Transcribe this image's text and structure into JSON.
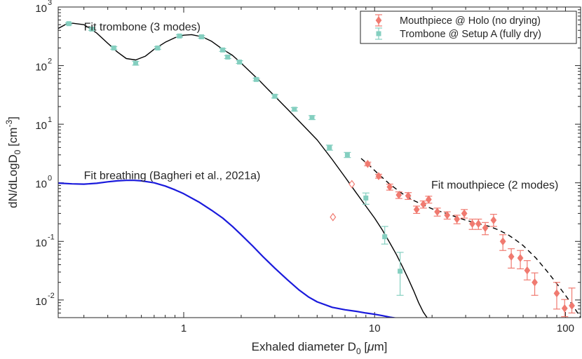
{
  "chart_data": {
    "type": "scatter",
    "xscale": "log",
    "yscale": "log",
    "xlim": [
      0.22,
      120
    ],
    "ylim": [
      0.005,
      1000
    ],
    "xlabel": {
      "main": "Exhaled diameter D",
      "sub": "0",
      "rest": " [",
      "mu": "μ",
      "unit": "m]"
    },
    "ylabel": {
      "main": "dN/dLogD",
      "sub": "0",
      "rest": " [cm",
      "sup": "-3",
      "end": "]"
    },
    "xticks": [
      {
        "value": 1,
        "label": "1"
      },
      {
        "value": 10,
        "label": "10"
      },
      {
        "value": 100,
        "label": "100"
      }
    ],
    "yticks": [
      {
        "value": 0.01,
        "base": "10",
        "exp": "-2"
      },
      {
        "value": 0.1,
        "base": "10",
        "exp": "-1"
      },
      {
        "value": 1,
        "base": "10",
        "exp": "0"
      },
      {
        "value": 10,
        "base": "10",
        "exp": "1"
      },
      {
        "value": 100,
        "base": "10",
        "exp": "2"
      },
      {
        "value": 1000,
        "base": "10",
        "exp": "3"
      }
    ],
    "legend": {
      "placement": "top-right",
      "entries": [
        {
          "label": "Mouthpiece @ Holo (no drying)",
          "color": "#f07a70",
          "marker": "diamond"
        },
        {
          "label": "Trombone @ Setup A (fully dry)",
          "color": "#84cfc0",
          "marker": "square"
        }
      ]
    },
    "annotations": [
      {
        "text": "Fit trombone (3 modes)",
        "x": 0.3,
        "y": 400
      },
      {
        "text": "Fit breathing (Bagheri et al., 2021a)",
        "x": 0.3,
        "y": 1.15
      },
      {
        "text": "Fit mouthpiece (2 modes)",
        "x": 19.8,
        "y": 0.8
      }
    ],
    "series": [
      {
        "name": "Trombone @ Setup A (fully dry)",
        "color": "#84cfc0",
        "marker": "square",
        "points": [
          {
            "x": 0.25,
            "y": 520,
            "err": [
              20,
              20
            ]
          },
          {
            "x": 0.33,
            "y": 420,
            "err": [
              20,
              20
            ]
          },
          {
            "x": 0.43,
            "y": 200,
            "err": [
              10,
              10
            ]
          },
          {
            "x": 0.56,
            "y": 110,
            "err": [
              8,
              8
            ]
          },
          {
            "x": 0.73,
            "y": 200,
            "err": [
              10,
              10
            ]
          },
          {
            "x": 0.95,
            "y": 320,
            "err": [
              15,
              15
            ]
          },
          {
            "x": 1.24,
            "y": 310,
            "err": [
              15,
              15
            ]
          },
          {
            "x": 1.6,
            "y": 185,
            "err": [
              10,
              10
            ]
          },
          {
            "x": 1.7,
            "y": 140,
            "err": [
              8,
              8
            ]
          },
          {
            "x": 1.96,
            "y": 115,
            "err": [
              6,
              6
            ]
          },
          {
            "x": 2.4,
            "y": 58,
            "err": [
              3,
              3
            ]
          },
          {
            "x": 3.0,
            "y": 30,
            "err": [
              2,
              2
            ]
          },
          {
            "x": 3.8,
            "y": 18,
            "err": [
              1.2,
              1.2
            ]
          },
          {
            "x": 4.7,
            "y": 13,
            "err": [
              1,
              1
            ]
          },
          {
            "x": 5.8,
            "y": 4,
            "err": [
              0.4,
              0.4
            ]
          },
          {
            "x": 7.2,
            "y": 3,
            "err": [
              0.3,
              0.3
            ]
          },
          {
            "x": 9.0,
            "y": 0.55,
            "err": [
              0.12,
              0.12
            ]
          },
          {
            "x": 11.3,
            "y": 0.12,
            "err": [
              0.03,
              0.06
            ]
          },
          {
            "x": 13.6,
            "y": 0.031,
            "err": [
              0.019,
              0.034
            ]
          }
        ]
      },
      {
        "name": "Mouthpiece @ Holo (no drying)",
        "color": "#f07a70",
        "marker": "diamond",
        "points": [
          {
            "x": 9.2,
            "y": 2.1,
            "err": [
              0.15,
              0.15
            ]
          },
          {
            "x": 10.5,
            "y": 1.3,
            "err": [
              0.1,
              0.1
            ]
          },
          {
            "x": 12.0,
            "y": 0.85,
            "err": [
              0.1,
              0.1
            ]
          },
          {
            "x": 13.4,
            "y": 0.62,
            "err": [
              0.08,
              0.08
            ]
          },
          {
            "x": 15.0,
            "y": 0.6,
            "err": [
              0.08,
              0.08
            ]
          },
          {
            "x": 16.6,
            "y": 0.35,
            "err": [
              0.05,
              0.05
            ]
          },
          {
            "x": 18.0,
            "y": 0.43,
            "err": [
              0.06,
              0.06
            ]
          },
          {
            "x": 19.2,
            "y": 0.52,
            "err": [
              0.07,
              0.07
            ]
          },
          {
            "x": 21.3,
            "y": 0.32,
            "err": [
              0.05,
              0.05
            ]
          },
          {
            "x": 24.0,
            "y": 0.28,
            "err": [
              0.04,
              0.04
            ]
          },
          {
            "x": 27.0,
            "y": 0.24,
            "err": [
              0.04,
              0.04
            ]
          },
          {
            "x": 29.5,
            "y": 0.3,
            "err": [
              0.05,
              0.05
            ]
          },
          {
            "x": 32.5,
            "y": 0.2,
            "err": [
              0.04,
              0.04
            ]
          },
          {
            "x": 35.0,
            "y": 0.2,
            "err": [
              0.04,
              0.04
            ]
          },
          {
            "x": 38.0,
            "y": 0.17,
            "err": [
              0.04,
              0.04
            ]
          },
          {
            "x": 42.0,
            "y": 0.23,
            "err": [
              0.05,
              0.06
            ]
          },
          {
            "x": 47.0,
            "y": 0.1,
            "err": [
              0.03,
              0.03
            ]
          },
          {
            "x": 52.0,
            "y": 0.055,
            "err": [
              0.02,
              0.02
            ]
          },
          {
            "x": 58.0,
            "y": 0.052,
            "err": [
              0.018,
              0.018
            ]
          },
          {
            "x": 63.0,
            "y": 0.032,
            "err": [
              0.01,
              0.015
            ]
          },
          {
            "x": 69.0,
            "y": 0.02,
            "err": [
              0.008,
              0.009
            ]
          },
          {
            "x": 90.0,
            "y": 0.013,
            "err": [
              0.006,
              0.007
            ]
          },
          {
            "x": 99.0,
            "y": 0.0072,
            "err": [
              0.002,
              0.003
            ]
          },
          {
            "x": 108.0,
            "y": 0.008,
            "err": [
              0.002,
              0.008
            ]
          }
        ],
        "open_points": [
          {
            "x": 6.05,
            "y": 0.26
          },
          {
            "x": 7.6,
            "y": 0.95
          }
        ]
      },
      {
        "name": "Fit trombone (3 modes)",
        "color": "#000000",
        "style": "solid",
        "x": [
          0.22,
          0.25,
          0.3,
          0.35,
          0.4,
          0.45,
          0.5,
          0.56,
          0.63,
          0.7,
          0.8,
          0.9,
          1.0,
          1.1,
          1.25,
          1.4,
          1.6,
          1.8,
          2.0,
          2.5,
          3.0,
          3.5,
          4.0,
          5.0,
          6.0,
          7.0,
          8.0,
          9.0,
          10.0,
          11.0,
          12.0,
          13.0,
          14.0,
          15.0,
          16.0,
          17.0,
          18.0,
          19.0
        ],
        "y": [
          430,
          540,
          500,
          360,
          240,
          170,
          132,
          125,
          145,
          190,
          250,
          300,
          330,
          338,
          310,
          260,
          190,
          150,
          110,
          55,
          30,
          18,
          11.5,
          5.4,
          2.5,
          1.25,
          0.68,
          0.4,
          0.25,
          0.155,
          0.095,
          0.06,
          0.037,
          0.023,
          0.0145,
          0.009,
          0.0062,
          0.0048
        ]
      },
      {
        "name": "Fit breathing (Bagheri et al., 2021a)",
        "color": "#1a1adc",
        "style": "solid",
        "x": [
          0.22,
          0.26,
          0.3,
          0.35,
          0.4,
          0.45,
          0.5,
          0.55,
          0.6,
          0.7,
          0.8,
          0.9,
          1.0,
          1.2,
          1.4,
          1.6,
          1.8,
          2.0,
          2.3,
          2.6,
          3.0,
          3.5,
          4.0,
          4.5,
          5.0,
          6.0,
          7.0,
          8.0,
          9.0,
          10.0,
          11.0,
          12.0,
          13.5
        ],
        "y": [
          0.99,
          0.96,
          0.95,
          0.98,
          1.04,
          1.08,
          1.1,
          1.1,
          1.08,
          1.0,
          0.88,
          0.76,
          0.65,
          0.47,
          0.34,
          0.25,
          0.18,
          0.13,
          0.083,
          0.055,
          0.035,
          0.022,
          0.015,
          0.0113,
          0.0093,
          0.0075,
          0.0068,
          0.0064,
          0.006,
          0.0057,
          0.0054,
          0.0051,
          0.0048
        ]
      },
      {
        "name": "Fit mouthpiece (2 modes)",
        "color": "#000000",
        "style": "dashed",
        "x": [
          8.5,
          9.5,
          10.5,
          12.0,
          14.0,
          16.0,
          18.0,
          20.0,
          23.0,
          26.0,
          30.0,
          35.0,
          40.0,
          45.0,
          50.0,
          55.0,
          60.0,
          70.0,
          80.0,
          90.0,
          100.0,
          110.0,
          120.0
        ],
        "y": [
          2.6,
          1.9,
          1.4,
          0.95,
          0.65,
          0.5,
          0.42,
          0.36,
          0.31,
          0.27,
          0.23,
          0.2,
          0.18,
          0.155,
          0.13,
          0.105,
          0.085,
          0.052,
          0.031,
          0.019,
          0.012,
          0.0078,
          0.005
        ]
      }
    ]
  }
}
